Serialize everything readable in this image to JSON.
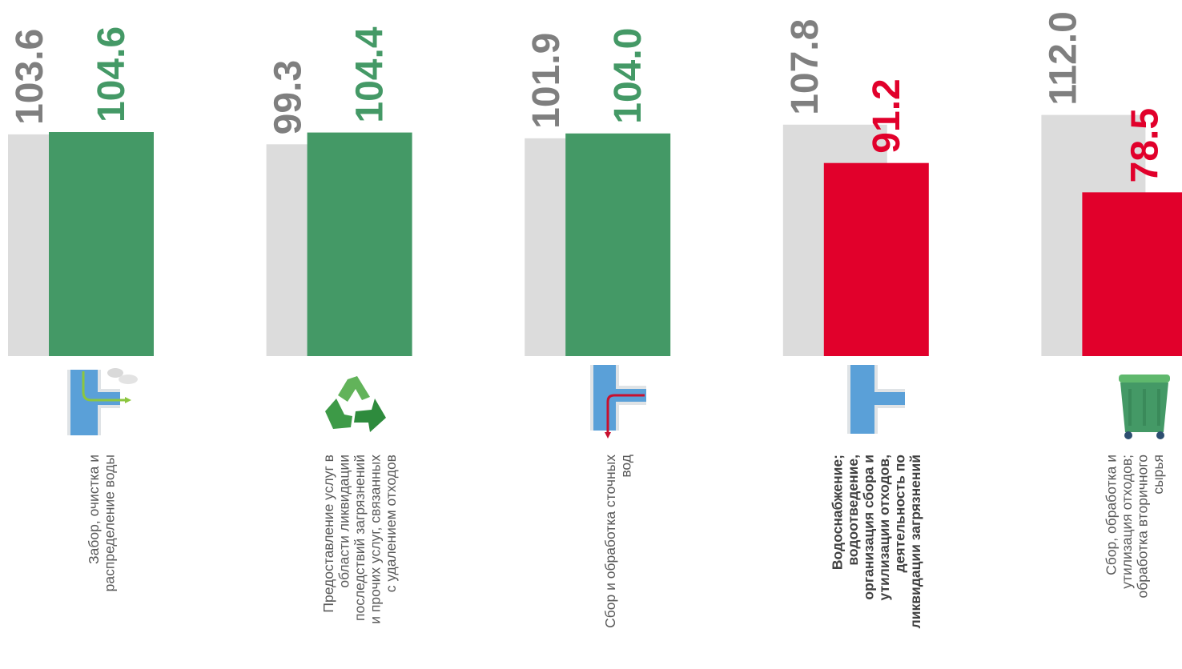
{
  "colors": {
    "prev": "#dcdcdc",
    "prev_label": "#7f7f7f",
    "up": "#449966",
    "down": "#e1002b",
    "category_text": "#595959"
  },
  "chart_data": {
    "type": "bar",
    "title": "",
    "xlabel": "",
    "ylabel": "",
    "categories": [
      [
        "Забор, очистка и",
        "распределение воды"
      ],
      [
        "Предоставление услуг в",
        "области ликвидации",
        "последствий загрязнений",
        "и прочих услуг, связанных",
        "с удалением отходов"
      ],
      [
        "Сбор и обработка сточных",
        "вод"
      ],
      [
        "Водоснабжение;",
        "водоотведение,",
        "организация сбора и",
        "утилизации отходов,",
        "деятельность по",
        "ликвидации загрязнений"
      ],
      [
        "Сбор, обработка и",
        "утилизация отходов;",
        "обработка вторичного",
        "сырья"
      ]
    ],
    "bold_category": [
      false,
      false,
      false,
      true,
      false
    ],
    "series": [
      {
        "values": [
          103.6,
          99.3,
          101.9,
          107.8,
          112.0
        ],
        "labels": [
          "103.6",
          "99.3",
          "101.9",
          "107.8",
          "112.0"
        ],
        "color": "#dcdcdc"
      },
      {
        "values": [
          104.6,
          104.4,
          104.0,
          91.2,
          78.5
        ],
        "labels": [
          "104.6",
          "104.4",
          "104.0",
          "91.2",
          "78.5"
        ],
        "colors": [
          "#449966",
          "#449966",
          "#449966",
          "#e1002b",
          "#e1002b"
        ]
      }
    ],
    "icons": [
      "water-intake-pipe-icon",
      "recycle-icon",
      "wastewater-pipe-icon",
      "water-supply-pipe-icon",
      "waste-container-icon"
    ],
    "legend": "none",
    "grid": false
  }
}
